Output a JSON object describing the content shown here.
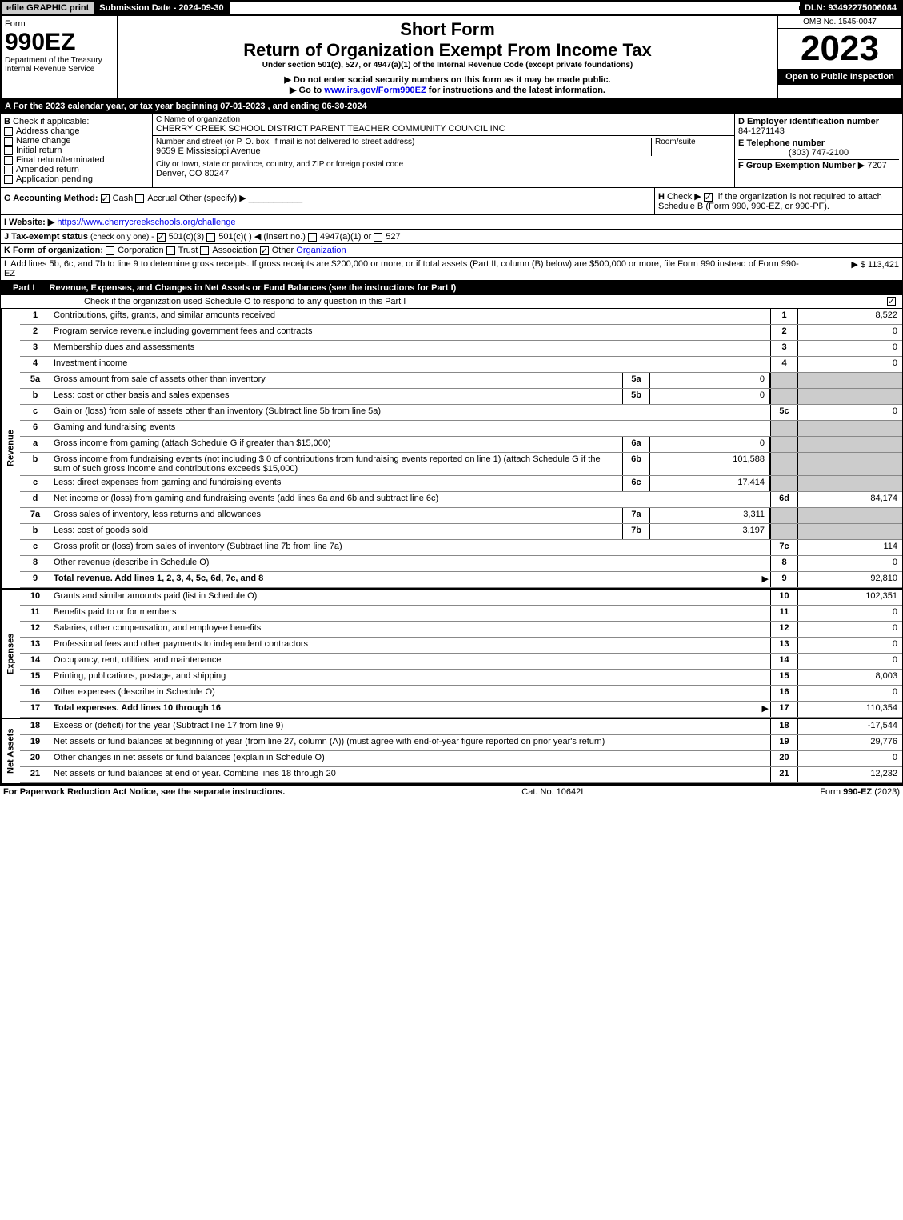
{
  "top": {
    "efile": "efile GRAPHIC print",
    "submission": "Submission Date - 2024-09-30",
    "dln": "DLN: 93492275006084"
  },
  "header": {
    "form_word": "Form",
    "form_num": "990EZ",
    "dept": "Department of the Treasury",
    "irs": "Internal Revenue Service",
    "short_form": "Short Form",
    "title": "Return of Organization Exempt From Income Tax",
    "subtitle": "Under section 501(c), 527, or 4947(a)(1) of the Internal Revenue Code (except private foundations)",
    "note1": "▶ Do not enter social security numbers on this form as it may be made public.",
    "note2_pre": "▶ Go to ",
    "note2_link": "www.irs.gov/Form990EZ",
    "note2_post": " for instructions and the latest information.",
    "omb": "OMB No. 1545-0047",
    "year": "2023",
    "open": "Open to Public Inspection"
  },
  "sectionA": "A  For the 2023 calendar year, or tax year beginning 07-01-2023 , and ending 06-30-2024",
  "B": {
    "label": "Check if applicable:",
    "opts": [
      "Address change",
      "Name change",
      "Initial return",
      "Final return/terminated",
      "Amended return",
      "Application pending"
    ]
  },
  "C": {
    "name_label": "C Name of organization",
    "name": "CHERRY CREEK SCHOOL DISTRICT PARENT TEACHER COMMUNITY COUNCIL INC",
    "street_label": "Number and street (or P. O. box, if mail is not delivered to street address)",
    "street": "9659 E Mississippi Avenue",
    "room_label": "Room/suite",
    "city_label": "City or town, state or province, country, and ZIP or foreign postal code",
    "city": "Denver, CO  80247"
  },
  "D": {
    "label": "D Employer identification number",
    "val": "84-1271143"
  },
  "E": {
    "label": "E Telephone number",
    "val": "(303) 747-2100"
  },
  "F": {
    "label": "F Group Exemption Number",
    "val": "▶ 7207"
  },
  "G": {
    "label": "G Accounting Method:",
    "cash": "Cash",
    "accrual": "Accrual",
    "other": "Other (specify) ▶"
  },
  "H": {
    "label": "H",
    "text": "Check ▶",
    "text2": "if the organization is not required to attach Schedule B (Form 990, 990-EZ, or 990-PF)."
  },
  "I": {
    "label": "I Website: ▶",
    "link": "https://www.cherrycreekschools.org/challenge"
  },
  "J": {
    "label": "J Tax-exempt status",
    "note": "(check only one) -",
    "o1": "501(c)(3)",
    "o2": "501(c)(  ) ◀ (insert no.)",
    "o3": "4947(a)(1) or",
    "o4": "527"
  },
  "K": {
    "label": "K Form of organization:",
    "o1": "Corporation",
    "o2": "Trust",
    "o3": "Association",
    "o4": "Other",
    "o4link": "Organization"
  },
  "L": {
    "text": "L Add lines 5b, 6c, and 7b to line 9 to determine gross receipts. If gross receipts are $200,000 or more, or if total assets (Part II, column (B) below) are $500,000 or more, file Form 990 instead of Form 990-EZ",
    "val": "▶ $ 113,421"
  },
  "part1": {
    "label": "Part I",
    "title": "Revenue, Expenses, and Changes in Net Assets or Fund Balances (see the instructions for Part I)",
    "check": "Check if the organization used Schedule O to respond to any question in this Part I"
  },
  "rev_label": "Revenue",
  "exp_label": "Expenses",
  "na_label": "Net Assets",
  "lines": {
    "1": {
      "d": "Contributions, gifts, grants, and similar amounts received",
      "n": "1",
      "v": "8,522"
    },
    "2": {
      "d": "Program service revenue including government fees and contracts",
      "n": "2",
      "v": "0"
    },
    "3": {
      "d": "Membership dues and assessments",
      "n": "3",
      "v": "0"
    },
    "4": {
      "d": "Investment income",
      "n": "4",
      "v": "0"
    },
    "5a": {
      "d": "Gross amount from sale of assets other than inventory",
      "sn": "5a",
      "sv": "0"
    },
    "5b": {
      "d": "Less: cost or other basis and sales expenses",
      "sn": "5b",
      "sv": "0"
    },
    "5c": {
      "d": "Gain or (loss) from sale of assets other than inventory (Subtract line 5b from line 5a)",
      "n": "5c",
      "v": "0"
    },
    "6": {
      "d": "Gaming and fundraising events"
    },
    "6a": {
      "d": "Gross income from gaming (attach Schedule G if greater than $15,000)",
      "sn": "6a",
      "sv": "0"
    },
    "6b": {
      "d": "Gross income from fundraising events (not including $ 0   of contributions from fundraising events reported on line 1) (attach Schedule G if the sum of such gross income and contributions exceeds $15,000)",
      "sn": "6b",
      "sv": "101,588"
    },
    "6c": {
      "d": "Less: direct expenses from gaming and fundraising events",
      "sn": "6c",
      "sv": "17,414"
    },
    "6d": {
      "d": "Net income or (loss) from gaming and fundraising events (add lines 6a and 6b and subtract line 6c)",
      "n": "6d",
      "v": "84,174"
    },
    "7a": {
      "d": "Gross sales of inventory, less returns and allowances",
      "sn": "7a",
      "sv": "3,311"
    },
    "7b": {
      "d": "Less: cost of goods sold",
      "sn": "7b",
      "sv": "3,197"
    },
    "7c": {
      "d": "Gross profit or (loss) from sales of inventory (Subtract line 7b from line 7a)",
      "n": "7c",
      "v": "114"
    },
    "8": {
      "d": "Other revenue (describe in Schedule O)",
      "n": "8",
      "v": "0"
    },
    "9": {
      "d": "Total revenue. Add lines 1, 2, 3, 4, 5c, 6d, 7c, and 8",
      "n": "9",
      "v": "92,810",
      "bold": true
    },
    "10": {
      "d": "Grants and similar amounts paid (list in Schedule O)",
      "n": "10",
      "v": "102,351"
    },
    "11": {
      "d": "Benefits paid to or for members",
      "n": "11",
      "v": "0"
    },
    "12": {
      "d": "Salaries, other compensation, and employee benefits",
      "n": "12",
      "v": "0"
    },
    "13": {
      "d": "Professional fees and other payments to independent contractors",
      "n": "13",
      "v": "0"
    },
    "14": {
      "d": "Occupancy, rent, utilities, and maintenance",
      "n": "14",
      "v": "0"
    },
    "15": {
      "d": "Printing, publications, postage, and shipping",
      "n": "15",
      "v": "8,003"
    },
    "16": {
      "d": "Other expenses (describe in Schedule O)",
      "n": "16",
      "v": "0"
    },
    "17": {
      "d": "Total expenses. Add lines 10 through 16",
      "n": "17",
      "v": "110,354",
      "bold": true
    },
    "18": {
      "d": "Excess or (deficit) for the year (Subtract line 17 from line 9)",
      "n": "18",
      "v": "-17,544"
    },
    "19": {
      "d": "Net assets or fund balances at beginning of year (from line 27, column (A)) (must agree with end-of-year figure reported on prior year's return)",
      "n": "19",
      "v": "29,776"
    },
    "20": {
      "d": "Other changes in net assets or fund balances (explain in Schedule O)",
      "n": "20",
      "v": "0"
    },
    "21": {
      "d": "Net assets or fund balances at end of year. Combine lines 18 through 20",
      "n": "21",
      "v": "12,232"
    }
  },
  "footer": {
    "left": "For Paperwork Reduction Act Notice, see the separate instructions.",
    "mid": "Cat. No. 10642I",
    "right": "Form 990-EZ (2023)"
  }
}
